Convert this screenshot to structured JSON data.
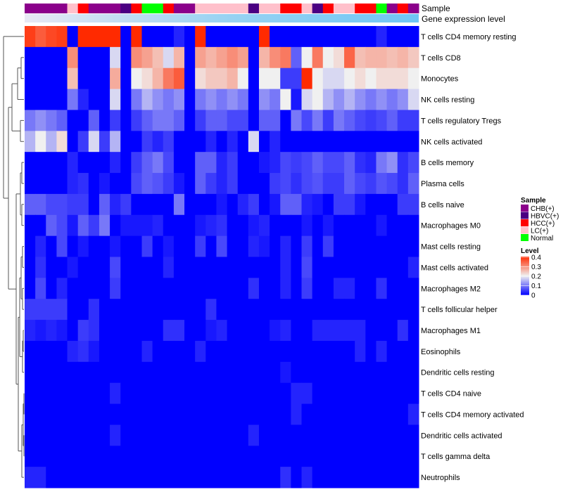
{
  "chart_data": {
    "type": "heatmap",
    "annotation_labels": {
      "sample": "Sample",
      "gene_expression": "Gene expression level"
    },
    "rows": [
      "T cells CD4 memory resting",
      "T cells CD8",
      "Monocytes",
      "NK cells resting",
      "T cells regulatory  Tregs",
      "NK cells activated",
      "B cells memory",
      "Plasma cells",
      "B cells naive",
      "Macrophages M0",
      "Mast cells resting",
      "Mast cells activated",
      "Macrophages M2",
      "T cells follicular helper",
      "Macrophages M1",
      "Eosinophils",
      "Dendritic cells resting",
      "T cells CD4 naive",
      "T cells CD4 memory activated",
      "Dendritic cells activated",
      "T cells gamma delta",
      "Neutrophils"
    ],
    "sample_groups": [
      "CHB",
      "CHB",
      "CHB",
      "CHB",
      "LC",
      "HCC",
      "CHB",
      "CHB",
      "CHB",
      "HBVC",
      "HCC",
      "Normal",
      "Normal",
      "HCC",
      "CHB",
      "CHB",
      "LC",
      "LC",
      "LC",
      "LC",
      "LC",
      "HBVC",
      "LC",
      "LC",
      "HCC",
      "HCC",
      "LC",
      "HBVC",
      "HCC",
      "LC",
      "LC",
      "HCC",
      "HCC",
      "Normal",
      "CHB",
      "HCC",
      "CHB"
    ],
    "values": [
      [
        0.38,
        0.35,
        0.37,
        0.38,
        0.0,
        0.4,
        0.4,
        0.4,
        0.4,
        0.0,
        0.4,
        0.0,
        0.0,
        0.0,
        0.03,
        0.0,
        0.4,
        0.0,
        0.0,
        0.0,
        0.0,
        0.0,
        0.4,
        0.0,
        0.0,
        0.0,
        0.0,
        0.0,
        0.0,
        0.0,
        0.0,
        0.0,
        0.0,
        0.03,
        0.0,
        0.0,
        0.0
      ],
      [
        0.0,
        0.0,
        0.0,
        0.0,
        0.3,
        0.0,
        0.0,
        0.0,
        0.18,
        0.0,
        0.3,
        0.28,
        0.25,
        0.18,
        0.26,
        0.0,
        0.28,
        0.26,
        0.28,
        0.3,
        0.28,
        0.0,
        0.26,
        0.3,
        0.32,
        0.08,
        0.2,
        0.32,
        0.2,
        0.22,
        0.34,
        0.25,
        0.26,
        0.26,
        0.25,
        0.26,
        0.24
      ],
      [
        0.0,
        0.0,
        0.0,
        0.0,
        0.25,
        0.0,
        0.0,
        0.0,
        0.27,
        0.0,
        0.2,
        0.22,
        0.26,
        0.32,
        0.35,
        0.0,
        0.22,
        0.24,
        0.24,
        0.26,
        0.2,
        0.0,
        0.2,
        0.2,
        0.05,
        0.05,
        0.4,
        0.2,
        0.18,
        0.18,
        0.2,
        0.22,
        0.2,
        0.22,
        0.22,
        0.22,
        0.2
      ],
      [
        0.0,
        0.0,
        0.0,
        0.0,
        0.1,
        0.03,
        0.0,
        0.0,
        0.18,
        0.0,
        0.1,
        0.15,
        0.12,
        0.1,
        0.12,
        0.0,
        0.1,
        0.12,
        0.1,
        0.12,
        0.1,
        0.0,
        0.12,
        0.1,
        0.2,
        0.02,
        0.18,
        0.2,
        0.15,
        0.12,
        0.15,
        0.12,
        0.1,
        0.12,
        0.1,
        0.12,
        0.18
      ],
      [
        0.1,
        0.12,
        0.1,
        0.08,
        0.0,
        0.0,
        0.08,
        0.0,
        0.05,
        0.0,
        0.05,
        0.08,
        0.1,
        0.1,
        0.08,
        0.0,
        0.05,
        0.08,
        0.08,
        0.06,
        0.06,
        0.0,
        0.08,
        0.08,
        0.0,
        0.1,
        0.06,
        0.1,
        0.05,
        0.1,
        0.08,
        0.06,
        0.05,
        0.06,
        0.08,
        0.05,
        0.05
      ],
      [
        0.15,
        0.2,
        0.15,
        0.22,
        0.0,
        0.05,
        0.18,
        0.05,
        0.15,
        0.0,
        0.0,
        0.05,
        0.03,
        0.05,
        0.0,
        0.0,
        0.0,
        0.03,
        0.0,
        0.03,
        0.0,
        0.18,
        0.0,
        0.03,
        0.0,
        0.0,
        0.0,
        0.0,
        0.0,
        0.0,
        0.0,
        0.0,
        0.0,
        0.0,
        0.0,
        0.0,
        0.0
      ],
      [
        0.0,
        0.0,
        0.0,
        0.0,
        0.03,
        0.0,
        0.0,
        0.0,
        0.03,
        0.0,
        0.05,
        0.08,
        0.1,
        0.06,
        0.0,
        0.0,
        0.08,
        0.08,
        0.03,
        0.05,
        0.0,
        0.0,
        0.02,
        0.03,
        0.06,
        0.05,
        0.06,
        0.08,
        0.06,
        0.06,
        0.08,
        0.04,
        0.03,
        0.1,
        0.12,
        0.04,
        0.06
      ],
      [
        0.0,
        0.0,
        0.0,
        0.0,
        0.03,
        0.04,
        0.0,
        0.02,
        0.0,
        0.0,
        0.06,
        0.08,
        0.07,
        0.05,
        0.02,
        0.0,
        0.08,
        0.05,
        0.03,
        0.05,
        0.0,
        0.0,
        0.0,
        0.05,
        0.06,
        0.04,
        0.06,
        0.07,
        0.05,
        0.05,
        0.08,
        0.06,
        0.05,
        0.07,
        0.06,
        0.04,
        0.08
      ],
      [
        0.08,
        0.08,
        0.06,
        0.06,
        0.05,
        0.05,
        0.0,
        0.08,
        0.03,
        0.05,
        0.0,
        0.0,
        0.0,
        0.0,
        0.1,
        0.0,
        0.0,
        0.0,
        0.02,
        0.0,
        0.03,
        0.05,
        0.0,
        0.02,
        0.08,
        0.08,
        0.03,
        0.02,
        0.0,
        0.05,
        0.05,
        0.02,
        0.0,
        0.0,
        0.0,
        0.05,
        0.05
      ],
      [
        0.0,
        0.0,
        0.08,
        0.06,
        0.02,
        0.08,
        0.05,
        0.1,
        0.0,
        0.02,
        0.02,
        0.02,
        0.03,
        0.0,
        0.0,
        0.0,
        0.02,
        0.03,
        0.04,
        0.0,
        0.0,
        0.02,
        0.03,
        0.0,
        0.0,
        0.0,
        0.02,
        0.0,
        0.02,
        0.0,
        0.0,
        0.0,
        0.0,
        0.02,
        0.0,
        0.0,
        0.0
      ],
      [
        0.0,
        0.03,
        0.0,
        0.06,
        0.0,
        0.02,
        0.0,
        0.0,
        0.02,
        0.0,
        0.0,
        0.05,
        0.0,
        0.02,
        0.0,
        0.0,
        0.05,
        0.0,
        0.06,
        0.0,
        0.0,
        0.03,
        0.02,
        0.0,
        0.03,
        0.0,
        0.05,
        0.0,
        0.05,
        0.0,
        0.0,
        0.0,
        0.0,
        0.0,
        0.0,
        0.0,
        0.0
      ],
      [
        0.0,
        0.04,
        0.0,
        0.0,
        0.02,
        0.0,
        0.0,
        0.0,
        0.06,
        0.0,
        0.0,
        0.0,
        0.0,
        0.03,
        0.0,
        0.0,
        0.0,
        0.0,
        0.0,
        0.0,
        0.0,
        0.0,
        0.0,
        0.0,
        0.03,
        0.0,
        0.06,
        0.0,
        0.0,
        0.0,
        0.0,
        0.0,
        0.0,
        0.0,
        0.0,
        0.0,
        0.03
      ],
      [
        0.0,
        0.06,
        0.0,
        0.03,
        0.0,
        0.0,
        0.0,
        0.0,
        0.05,
        0.0,
        0.0,
        0.0,
        0.0,
        0.0,
        0.0,
        0.0,
        0.0,
        0.0,
        0.0,
        0.0,
        0.0,
        0.04,
        0.0,
        0.0,
        0.03,
        0.0,
        0.05,
        0.0,
        0.0,
        0.03,
        0.03,
        0.0,
        0.0,
        0.04,
        0.0,
        0.0,
        0.0
      ],
      [
        0.05,
        0.05,
        0.05,
        0.05,
        0.0,
        0.0,
        0.04,
        0.0,
        0.0,
        0.0,
        0.0,
        0.0,
        0.0,
        0.0,
        0.0,
        0.0,
        0.0,
        0.04,
        0.0,
        0.0,
        0.0,
        0.0,
        0.0,
        0.0,
        0.0,
        0.0,
        0.0,
        0.0,
        0.0,
        0.0,
        0.0,
        0.0,
        0.0,
        0.0,
        0.0,
        0.0,
        0.0
      ],
      [
        0.03,
        0.02,
        0.03,
        0.02,
        0.0,
        0.05,
        0.04,
        0.0,
        0.0,
        0.0,
        0.0,
        0.0,
        0.0,
        0.04,
        0.04,
        0.0,
        0.0,
        0.02,
        0.03,
        0.0,
        0.0,
        0.0,
        0.0,
        0.02,
        0.03,
        0.0,
        0.0,
        0.03,
        0.03,
        0.03,
        0.03,
        0.03,
        0.0,
        0.0,
        0.0,
        0.04,
        0.0
      ],
      [
        0.0,
        0.0,
        0.0,
        0.0,
        0.03,
        0.04,
        0.02,
        0.0,
        0.0,
        0.0,
        0.0,
        0.03,
        0.0,
        0.0,
        0.0,
        0.0,
        0.03,
        0.0,
        0.0,
        0.0,
        0.0,
        0.0,
        0.0,
        0.0,
        0.0,
        0.0,
        0.0,
        0.0,
        0.0,
        0.0,
        0.0,
        0.03,
        0.0,
        0.03,
        0.0,
        0.0,
        0.0
      ],
      [
        0.0,
        0.0,
        0.0,
        0.0,
        0.0,
        0.0,
        0.0,
        0.0,
        0.0,
        0.0,
        0.0,
        0.0,
        0.0,
        0.0,
        0.0,
        0.0,
        0.0,
        0.0,
        0.0,
        0.0,
        0.0,
        0.0,
        0.0,
        0.0,
        0.02,
        0.0,
        0.0,
        0.0,
        0.0,
        0.0,
        0.0,
        0.0,
        0.0,
        0.0,
        0.0,
        0.0,
        0.0
      ],
      [
        0.0,
        0.0,
        0.0,
        0.0,
        0.0,
        0.0,
        0.0,
        0.0,
        0.03,
        0.0,
        0.0,
        0.0,
        0.0,
        0.0,
        0.0,
        0.0,
        0.0,
        0.0,
        0.0,
        0.0,
        0.0,
        0.0,
        0.0,
        0.0,
        0.0,
        0.03,
        0.03,
        0.0,
        0.0,
        0.0,
        0.0,
        0.0,
        0.0,
        0.0,
        0.0,
        0.0,
        0.0
      ],
      [
        0.0,
        0.0,
        0.0,
        0.0,
        0.0,
        0.0,
        0.0,
        0.0,
        0.0,
        0.0,
        0.0,
        0.0,
        0.0,
        0.0,
        0.0,
        0.0,
        0.0,
        0.0,
        0.0,
        0.0,
        0.0,
        0.0,
        0.0,
        0.0,
        0.0,
        0.03,
        0.0,
        0.0,
        0.0,
        0.0,
        0.0,
        0.0,
        0.0,
        0.0,
        0.0,
        0.0,
        0.03
      ],
      [
        0.0,
        0.0,
        0.0,
        0.0,
        0.0,
        0.0,
        0.0,
        0.0,
        0.03,
        0.0,
        0.0,
        0.0,
        0.0,
        0.0,
        0.0,
        0.0,
        0.0,
        0.0,
        0.0,
        0.0,
        0.0,
        0.03,
        0.0,
        0.0,
        0.0,
        0.0,
        0.0,
        0.0,
        0.0,
        0.0,
        0.0,
        0.0,
        0.0,
        0.0,
        0.0,
        0.0,
        0.0
      ],
      [
        0.0,
        0.0,
        0.0,
        0.0,
        0.0,
        0.0,
        0.0,
        0.0,
        0.0,
        0.0,
        0.0,
        0.0,
        0.0,
        0.0,
        0.0,
        0.0,
        0.0,
        0.0,
        0.0,
        0.0,
        0.0,
        0.0,
        0.0,
        0.0,
        0.0,
        0.0,
        0.0,
        0.0,
        0.0,
        0.0,
        0.0,
        0.0,
        0.0,
        0.0,
        0.0,
        0.0,
        0.0
      ],
      [
        0.03,
        0.03,
        0.0,
        0.0,
        0.0,
        0.0,
        0.0,
        0.0,
        0.0,
        0.0,
        0.0,
        0.0,
        0.0,
        0.0,
        0.0,
        0.0,
        0.0,
        0.0,
        0.0,
        0.0,
        0.0,
        0.0,
        0.0,
        0.0,
        0.04,
        0.0,
        0.03,
        0.0,
        0.0,
        0.0,
        0.0,
        0.0,
        0.0,
        0.0,
        0.0,
        0.0,
        0.0
      ]
    ],
    "legend": {
      "sample_title": "Sample",
      "sample_items": [
        {
          "key": "CHB",
          "label": "CHB(+)",
          "color": "#8b008b"
        },
        {
          "key": "HBVC",
          "label": "HBVC(+)",
          "color": "#4b0082"
        },
        {
          "key": "HCC",
          "label": "HCC(+)",
          "color": "#ff0000"
        },
        {
          "key": "LC",
          "label": "LC(+)",
          "color": "#ffc0cb"
        },
        {
          "key": "Normal",
          "label": "Normal",
          "color": "#00ff00"
        }
      ],
      "level_title": "Level",
      "level_ticks": [
        0.4,
        0.3,
        0.2,
        0.1,
        0
      ],
      "level_tick_labels": [
        "0.4",
        "0.3",
        "0.2",
        "0.1",
        "0"
      ]
    },
    "color_scale": {
      "domain": [
        0,
        0.2,
        0.4
      ],
      "colors": [
        "#0000ff",
        "#f0f0f0",
        "#ff2a00"
      ]
    },
    "gene_expression_gradient": [
      "#e0e0f0",
      "#8fd0f2",
      "#72c8f5"
    ]
  }
}
